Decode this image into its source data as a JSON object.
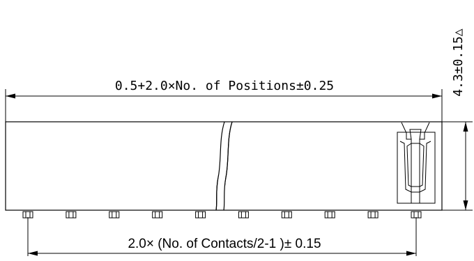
{
  "dimensions": {
    "top_length": "0.5+2.0×No. of Positions±0.25",
    "bottom_pitch": "2.0× (No. of Contacts/2-1 )± 0.15",
    "height": "4.3±0.15△"
  },
  "pin_count": 10
}
